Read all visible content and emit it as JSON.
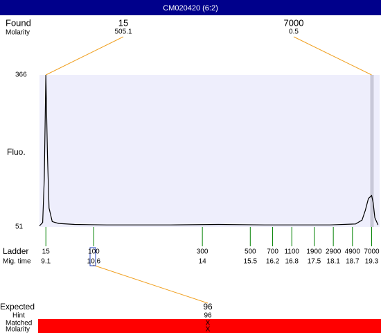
{
  "header": {
    "title": "CM020420 (6:2)"
  },
  "found": {
    "label": "Found",
    "molarity_label": "Molarity",
    "peaks": [
      {
        "size": 15,
        "molarity": 505.1
      },
      {
        "size": 7000,
        "molarity": 0.5
      }
    ]
  },
  "chart_data": {
    "type": "line",
    "ylabel": "Fluo.",
    "ylim": [
      51,
      366
    ],
    "yticks": [
      51,
      366
    ],
    "xlim": [
      8.9,
      19.55
    ],
    "color": "#000000",
    "x": [
      8.9,
      9.0,
      9.05,
      9.1,
      9.15,
      9.2,
      9.3,
      9.5,
      10,
      11,
      13,
      14.5,
      16,
      18,
      18.8,
      19.0,
      19.1,
      19.2,
      19.3,
      19.35,
      19.4,
      19.5
    ],
    "values": [
      53,
      60,
      150,
      366,
      200,
      90,
      62,
      58,
      56,
      55,
      55,
      56,
      55,
      55,
      57,
      65,
      85,
      110,
      116,
      100,
      70,
      55
    ]
  },
  "ladder": {
    "label": "Ladder",
    "mig_label": "Mig. time",
    "sizes": [
      15,
      100,
      300,
      500,
      700,
      1100,
      1900,
      2900,
      4900,
      7000
    ],
    "times": [
      9.1,
      10.6,
      14,
      15.5,
      16.2,
      16.8,
      17.5,
      18.1,
      18.7,
      19.3
    ]
  },
  "expected": {
    "label": "Expected",
    "value": 96,
    "hint_label": "Hint",
    "hint": 96,
    "matched_label": "Matched",
    "matched": "X",
    "molarity_label": "Molarity",
    "molarity": "X"
  }
}
